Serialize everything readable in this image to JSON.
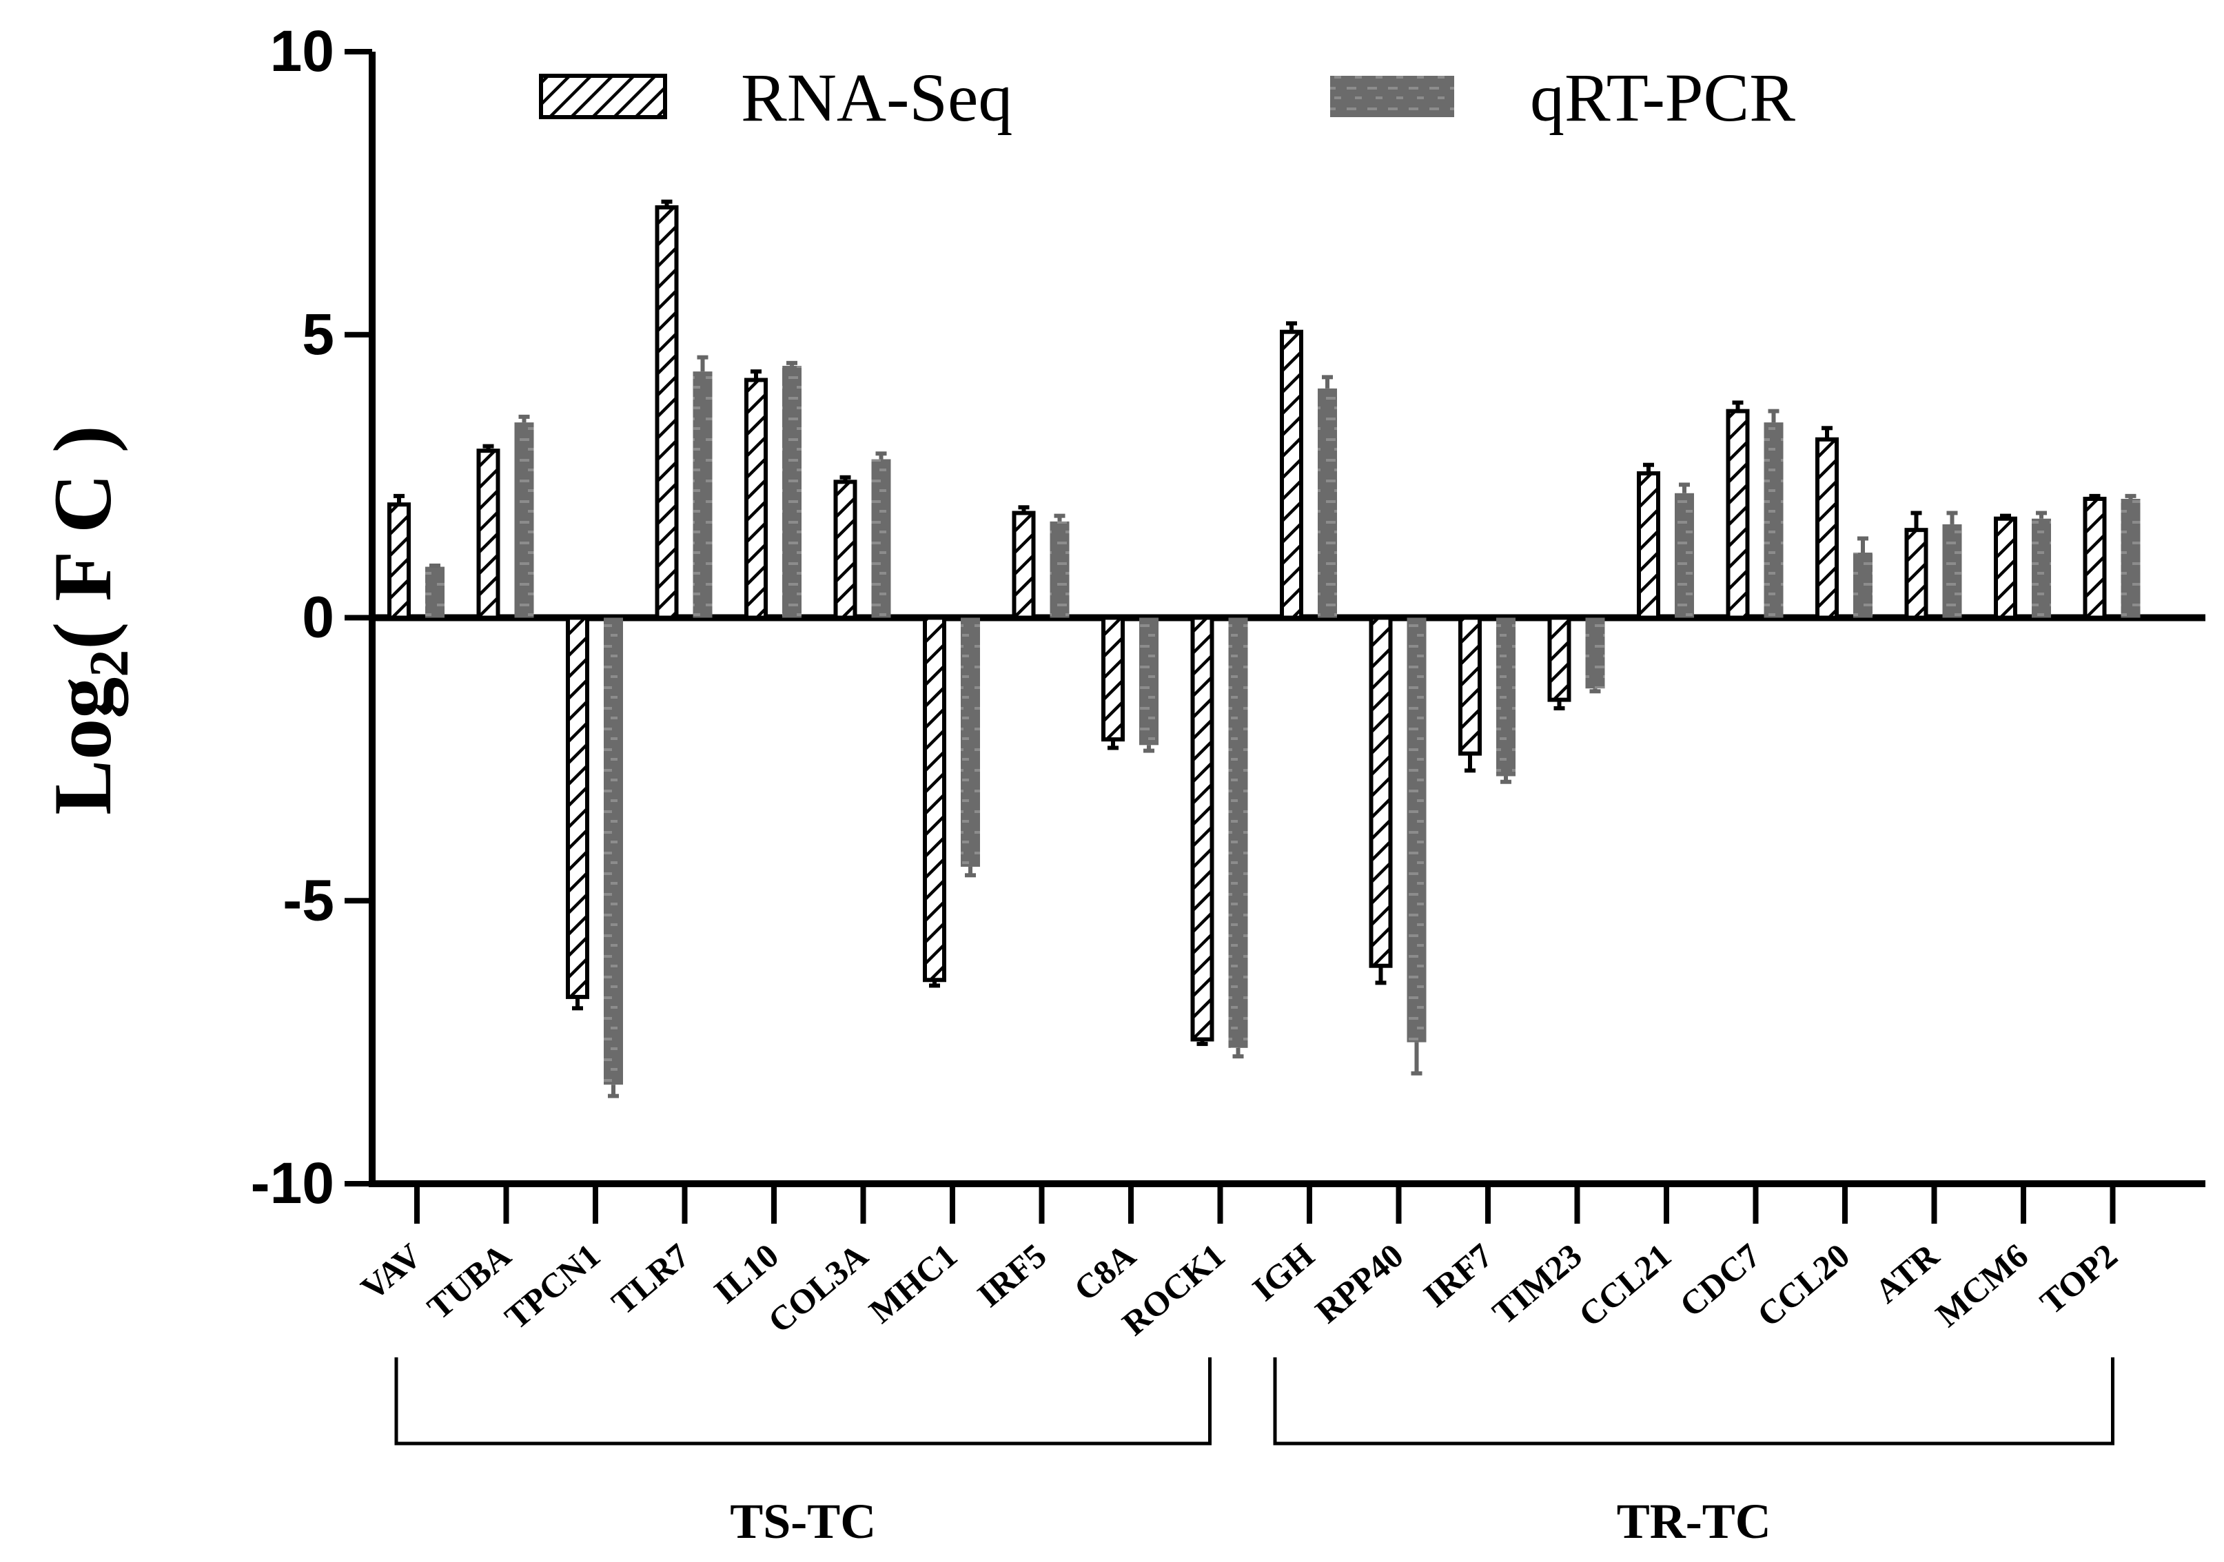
{
  "chart_data": {
    "type": "bar",
    "ylabel_main": "Log",
    "ylabel_sub": "2",
    "ylabel_rest": "( F C )",
    "ylim": [
      -10,
      10
    ],
    "yticks": [
      10,
      5,
      0,
      -5,
      -10
    ],
    "ytick_labels": [
      "10",
      "5",
      "0",
      "-5",
      "-10"
    ],
    "categories": [
      "VAV",
      "TUBA",
      "TPCN1",
      "TLR7",
      "IL10",
      "COL3A",
      "MHC1",
      "IRF5",
      "C8A",
      "ROCK1",
      "IGH",
      "RPP40",
      "IRF7",
      "TIM23",
      "CCL21",
      "CDC7",
      "CCL20",
      "ATR",
      "MCM6",
      "TOP2"
    ],
    "series": [
      {
        "name": "RNA-Seq",
        "color": "#000000",
        "pattern": "diagonal-hatch",
        "values": [
          2.0,
          2.95,
          -6.7,
          7.25,
          4.2,
          2.4,
          -6.4,
          1.85,
          -2.15,
          -7.45,
          5.05,
          -6.15,
          -2.4,
          -1.45,
          2.55,
          3.65,
          3.15,
          1.55,
          1.75,
          2.1
        ],
        "errors": [
          0.15,
          0.08,
          0.2,
          0.1,
          0.15,
          0.08,
          0.1,
          0.1,
          0.15,
          0.08,
          0.15,
          0.3,
          0.3,
          0.15,
          0.15,
          0.15,
          0.2,
          0.3,
          0.05,
          0.05
        ]
      },
      {
        "name": "qRT-PCR",
        "color": "#666666",
        "pattern": "grey-dashes",
        "values": [
          0.9,
          3.45,
          -8.25,
          4.35,
          4.45,
          2.8,
          -4.4,
          1.7,
          -2.25,
          -7.6,
          4.05,
          -7.5,
          -2.8,
          -1.25,
          2.2,
          3.45,
          1.15,
          1.65,
          1.75,
          2.1
        ],
        "errors": [
          0.02,
          0.1,
          0.2,
          0.25,
          0.05,
          0.1,
          0.15,
          0.1,
          0.1,
          0.15,
          0.2,
          0.55,
          0.1,
          0.05,
          0.15,
          0.2,
          0.25,
          0.2,
          0.1,
          0.05
        ]
      }
    ],
    "groups": [
      {
        "label": "TS-TC",
        "from": 0,
        "to": 9
      },
      {
        "label": "TR-TC",
        "from": 10,
        "to": 19
      }
    ],
    "legend_position": "top-center"
  }
}
